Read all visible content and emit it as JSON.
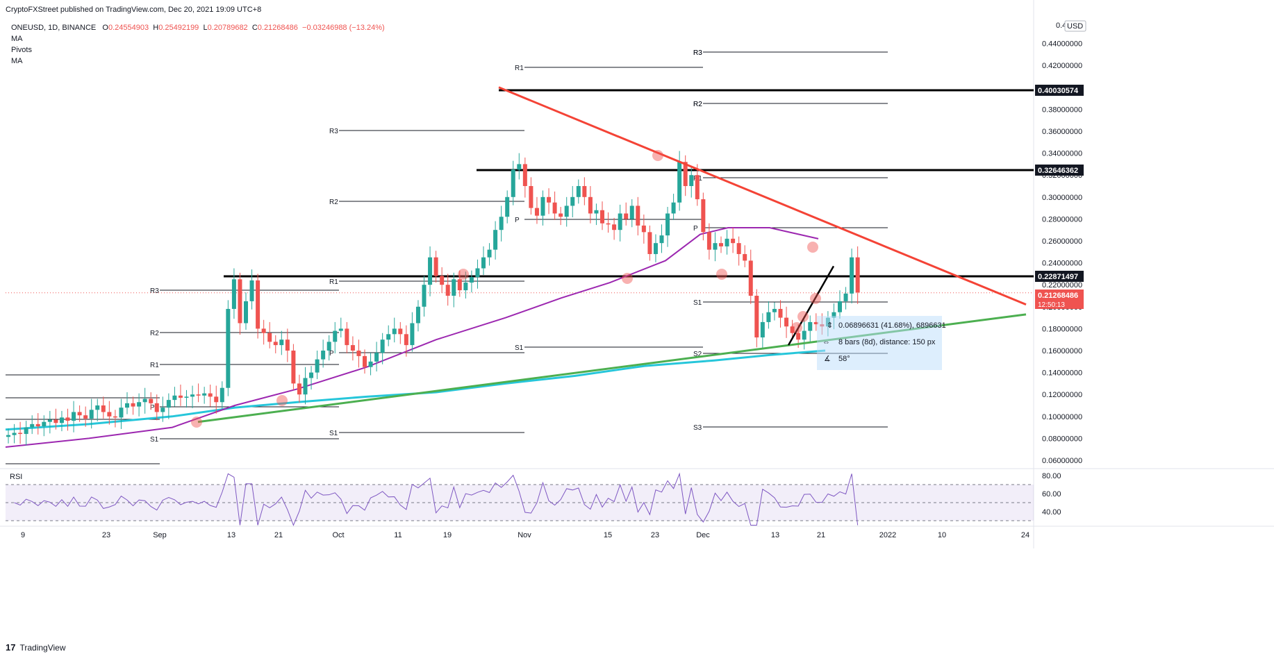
{
  "header": {
    "published": "CryptoFXStreet published on TradingView.com, Dec 20, 2021 19:09 UTC+8",
    "symbol": "ONEUSD, 1D, BINANCE",
    "o_label": "O",
    "o": "0.24554903",
    "h_label": "H",
    "h": "0.25492199",
    "l_label": "L",
    "l": "0.20789682",
    "c_label": "C",
    "c": "0.21268486",
    "change": "−0.03246988 (−13.24%)",
    "indicators": [
      "MA",
      "Pivots",
      "MA"
    ]
  },
  "price_scale": {
    "currency": "USD",
    "top_label": "0.4",
    "ticks": [
      "0.44000000",
      "0.42000000",
      "0.38000000",
      "0.36000000",
      "0.34000000",
      "0.32000000",
      "0.30000000",
      "0.28000000",
      "0.26000000",
      "0.24000000",
      "0.22000000",
      "0.20000000",
      "0.18000000",
      "0.16000000",
      "0.14000000",
      "0.12000000",
      "0.10000000",
      "0.08000000",
      "0.06000000"
    ],
    "badges": [
      {
        "value": "0.40030574",
        "style": "dark"
      },
      {
        "value": "0.32646362",
        "style": "dark"
      },
      {
        "value": "0.22871497",
        "style": "dark"
      },
      {
        "value": "0.21268486",
        "style": "red",
        "timer": "12:50:13"
      }
    ]
  },
  "time_axis": [
    "9",
    "23",
    "Sep",
    "13",
    "21",
    "Oct",
    "11",
    "19",
    "Nov",
    "15",
    "23",
    "Dec",
    "13",
    "21",
    "2022",
    "10",
    "24"
  ],
  "measure_tool": {
    "line1": "0.06896631 (41.68%), 6896631",
    "line2": "8 bars (8d), distance: 150 px",
    "line3": "58°"
  },
  "rsi": {
    "label": "RSI",
    "ticks": [
      "80.00",
      "60.00",
      "40.00"
    ]
  },
  "pivot_labels": [
    "R3",
    "R2",
    "R1",
    "P",
    "S1",
    "R3",
    "R2",
    "R1",
    "P",
    "S1",
    "R1",
    "R3",
    "R2",
    "P",
    "S1",
    "R3",
    "R2",
    "R1",
    "P",
    "S1",
    "S2",
    "S3"
  ],
  "colors": {
    "up": "#26a69a",
    "down": "#ef5350",
    "ma50": "#9c27b0",
    "ma200": "#26c6da",
    "trend_down": "#f44336",
    "trend_up": "#4caf50",
    "rsi": "#7e57c2",
    "bg": "#ffffff"
  },
  "footer": {
    "brand": "TradingView"
  },
  "chart_data": {
    "type": "candlestick",
    "timeframe": "1D",
    "ylim": [
      0.05,
      0.46
    ],
    "horizontal_levels": [
      0.40030574,
      0.32646362,
      0.22871497
    ],
    "last_price": 0.21268486,
    "series_close": [
      0.083,
      0.085,
      0.084,
      0.09,
      0.093,
      0.091,
      0.095,
      0.097,
      0.094,
      0.099,
      0.096,
      0.104,
      0.101,
      0.098,
      0.106,
      0.11,
      0.104,
      0.1,
      0.099,
      0.108,
      0.112,
      0.109,
      0.113,
      0.116,
      0.112,
      0.104,
      0.108,
      0.115,
      0.119,
      0.117,
      0.118,
      0.12,
      0.119,
      0.121,
      0.118,
      0.113,
      0.126,
      0.198,
      0.225,
      0.185,
      0.205,
      0.224,
      0.18,
      0.176,
      0.168,
      0.165,
      0.17,
      0.16,
      0.13,
      0.12,
      0.135,
      0.14,
      0.152,
      0.16,
      0.168,
      0.178,
      0.18,
      0.165,
      0.16,
      0.155,
      0.145,
      0.15,
      0.158,
      0.17,
      0.175,
      0.18,
      0.175,
      0.165,
      0.185,
      0.2,
      0.22,
      0.245,
      0.228,
      0.22,
      0.21,
      0.225,
      0.215,
      0.222,
      0.227,
      0.235,
      0.245,
      0.252,
      0.27,
      0.282,
      0.3,
      0.325,
      0.33,
      0.31,
      0.29,
      0.283,
      0.3,
      0.295,
      0.285,
      0.282,
      0.292,
      0.3,
      0.31,
      0.3,
      0.285,
      0.288,
      0.276,
      0.275,
      0.27,
      0.285,
      0.28,
      0.292,
      0.274,
      0.268,
      0.248,
      0.258,
      0.265,
      0.285,
      0.295,
      0.332,
      0.31,
      0.32,
      0.298,
      0.268,
      0.252,
      0.258,
      0.255,
      0.262,
      0.258,
      0.248,
      0.242,
      0.21,
      0.172,
      0.186,
      0.195,
      0.198,
      0.19,
      0.182,
      0.176,
      0.17,
      0.178,
      0.186,
      0.184,
      0.182,
      0.19,
      0.195,
      0.205,
      0.212,
      0.245,
      0.213
    ],
    "ma50": [
      [
        0,
        0.072
      ],
      [
        120,
        0.08
      ],
      [
        240,
        0.09
      ],
      [
        330,
        0.11
      ],
      [
        420,
        0.125
      ],
      [
        520,
        0.145
      ],
      [
        620,
        0.17
      ],
      [
        720,
        0.19
      ],
      [
        800,
        0.208
      ],
      [
        870,
        0.222
      ],
      [
        950,
        0.242
      ],
      [
        1000,
        0.266
      ],
      [
        1040,
        0.272
      ],
      [
        1100,
        0.272
      ],
      [
        1170,
        0.262
      ]
    ],
    "ma200": [
      [
        0,
        0.088
      ],
      [
        120,
        0.093
      ],
      [
        240,
        0.1
      ],
      [
        330,
        0.108
      ],
      [
        420,
        0.113
      ],
      [
        520,
        0.118
      ],
      [
        620,
        0.122
      ],
      [
        720,
        0.13
      ],
      [
        820,
        0.137
      ],
      [
        920,
        0.146
      ],
      [
        1020,
        0.151
      ],
      [
        1100,
        0.156
      ],
      [
        1180,
        0.16
      ]
    ],
    "trendlines": [
      {
        "name": "descending",
        "from": [
          718,
          0.4
        ],
        "to": [
          1477,
          0.202
        ]
      },
      {
        "name": "ascending",
        "from": [
          285,
          0.095
        ],
        "to": [
          1477,
          0.193
        ]
      },
      {
        "name": "short-rise",
        "from": [
          1135,
          0.165
        ],
        "to": [
          1200,
          0.237
        ]
      }
    ]
  }
}
